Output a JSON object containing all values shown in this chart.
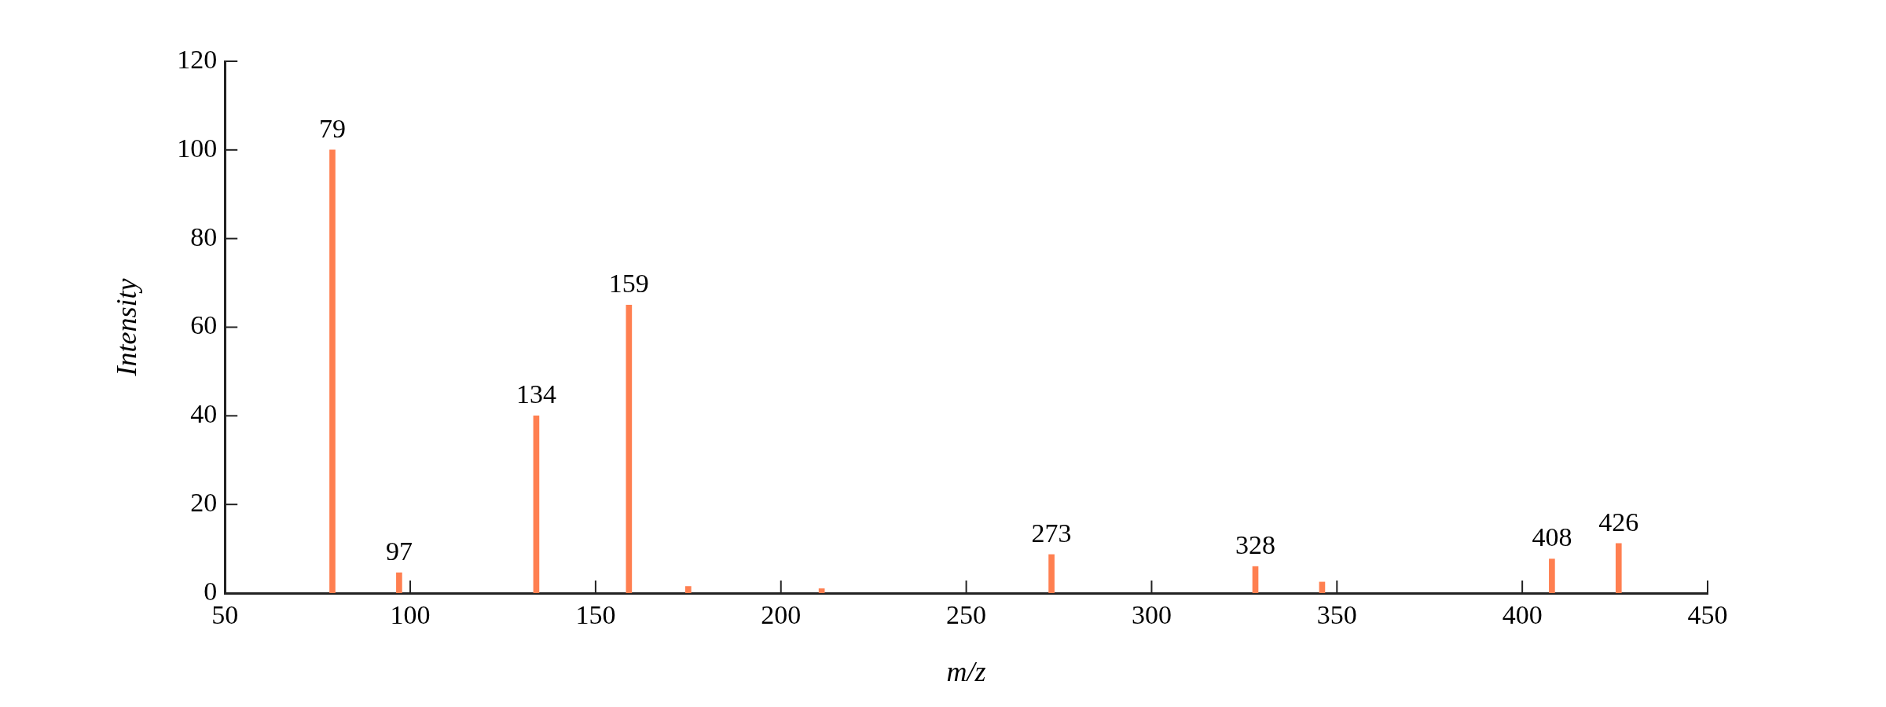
{
  "chart_data": {
    "type": "bar",
    "xlabel": "m/z",
    "ylabel": "Intensity",
    "x": [
      79,
      97,
      134,
      159,
      175,
      211,
      273,
      328,
      346,
      408,
      426
    ],
    "values": [
      100,
      4.6,
      40,
      65,
      1.5,
      1,
      8.7,
      6,
      2.5,
      7.7,
      11.2
    ],
    "annotations": [
      {
        "text": "79",
        "x": 79,
        "y": 100
      },
      {
        "text": "97",
        "x": 97,
        "y": 4.6
      },
      {
        "text": "134",
        "x": 134,
        "y": 40
      },
      {
        "text": "159",
        "x": 159,
        "y": 65
      },
      {
        "text": "273",
        "x": 273,
        "y": 8.7
      },
      {
        "text": "328",
        "x": 328,
        "y": 6
      },
      {
        "text": "408",
        "x": 408,
        "y": 7.7
      },
      {
        "text": "426",
        "x": 426,
        "y": 11.2
      }
    ],
    "color": "#ff7f50",
    "xlim": [
      50,
      450
    ],
    "xticks": [
      50,
      100,
      150,
      200,
      250,
      300,
      350,
      400,
      450
    ],
    "ylim": [
      0,
      120
    ],
    "yticks": [
      0,
      20,
      40,
      60,
      80,
      100,
      120
    ],
    "grid": false,
    "legend": false
  }
}
